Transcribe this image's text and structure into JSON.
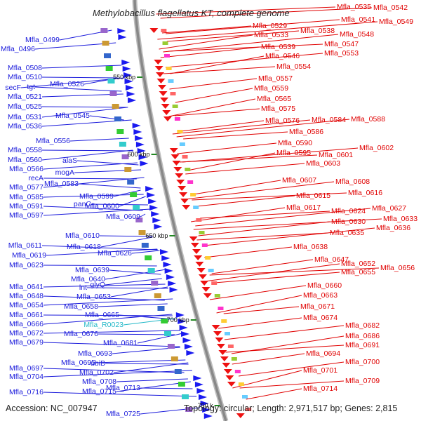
{
  "title": "Methylobacillus flagellatus KT, complete genome",
  "accession": "Accession: NC_007947",
  "topology": "Topology: circular; Length: 2,971,517 bp; Genes: 2,815",
  "colors": {
    "left_label": "#1a1adb",
    "right_label": "#e00000",
    "rna_label": "#22b8c8",
    "backbone": "#888888"
  },
  "kbp_ticks": [
    "550 kbp",
    "600 kbp",
    "650 kbp",
    "700 kbp",
    "750 k"
  ],
  "left_labels": [
    "Mfla_0499",
    "Mfla_0496",
    "Mfla_0508",
    "Mfla_0510",
    "tgt",
    "secF",
    "Mfla_0526",
    "Mfla_0521",
    "Mfla_0525",
    "Mfla_0545",
    "Mfla_0531",
    "Mfla_0536",
    "Mfla_0556",
    "Mfla_0558",
    "alaS",
    "Mfla_0560",
    "Mfla_0566",
    "mogA",
    "recA",
    "Mfla_0583",
    "Mfla_0577",
    "Mfla_0599",
    "Mfla_0585",
    "panC",
    "Mfla_0591",
    "Mfla_0600",
    "Mfla_0597",
    "Mfla_0609",
    "Mfla_0610",
    "Mfla_0611",
    "Mfla_0618",
    "Mfla_0619",
    "Mfla_0626",
    "Mfla_0623",
    "Mfla_0639",
    "Mfla_0640",
    "glyQ",
    "Mfla_0641",
    "lnt",
    "Mfla_0648",
    "Mfla_0653",
    "Mfla_0654",
    "Mfla_0658",
    "Mfla_0661",
    "Mfla_0665",
    "Mfla_0666",
    "Mfla_R0023",
    "Mfla_0672",
    "Mfla_0676",
    "Mfla_0679",
    "Mfla_0681",
    "Mfla_0693",
    "Mfla_0695",
    "ubiB",
    "Mfla_0697",
    "Mfla_0702",
    "Mfla_0704",
    "Mfla_0708",
    "Mfla_0713",
    "Mfla_0716",
    "Mfla_0715",
    "Mfla_0725"
  ],
  "right_labels": [
    "Mfla_0535",
    "Mfla_0542",
    "Mfla_0541",
    "Mfla_0549",
    "Mfla_0529",
    "Mfla_0538",
    "Mfla_0533",
    "Mfla_0548",
    "Mfla_0547",
    "Mfla_0539",
    "Mfla_0553",
    "Mfla_0546",
    "Mfla_0554",
    "Mfla_0557",
    "Mfla_0559",
    "Mfla_0565",
    "Mfla_0575",
    "Mfla_0576",
    "Mfla_0584",
    "Mfla_0588",
    "Mfla_0586",
    "Mfla_0590",
    "Mfla_0602",
    "Mfla_0595",
    "Mfla_0601",
    "Mfla_0603",
    "Mfla_0607",
    "Mfla_0608",
    "Mfla_0616",
    "Mfla_0615",
    "Mfla_0617",
    "Mfla_0627",
    "Mfla_0624",
    "Mfla_0633",
    "Mfla_0630",
    "Mfla_0636",
    "Mfla_0635",
    "Mfla_0638",
    "Mfla_0647",
    "Mfla_0652",
    "Mfla_0656",
    "Mfla_0655",
    "Mfla_0660",
    "Mfla_0663",
    "Mfla_0671",
    "Mfla_0674",
    "Mfla_0682",
    "Mfla_0686",
    "Mfla_0691",
    "Mfla_0694",
    "Mfla_0700",
    "Mfla_0701",
    "Mfla_0709",
    "Mfla_0714"
  ]
}
